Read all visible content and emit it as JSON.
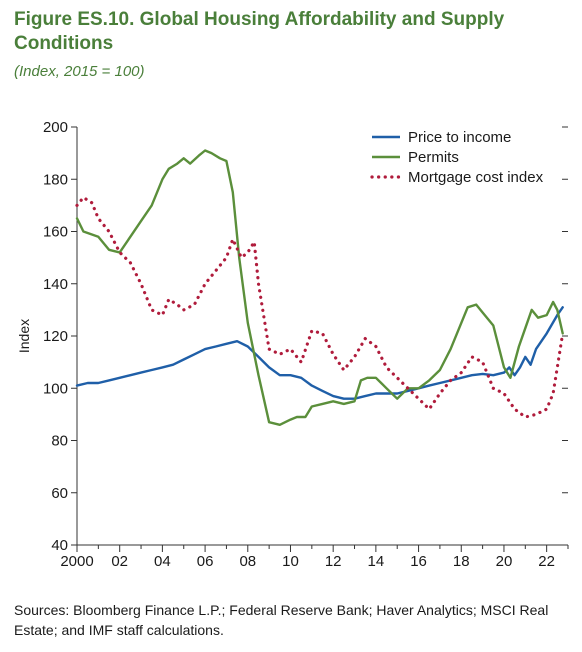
{
  "header": {
    "title": "Figure ES.10. Global Housing Affordability and Supply Conditions",
    "subtitle": "(Index, 2015 = 100)"
  },
  "footer": {
    "source": "Sources: Bloomberg Finance L.P.; Federal Reserve Bank; Haver Analytics; MSCI Real Estate; and IMF staff calculations."
  },
  "chart_data": {
    "type": "line",
    "ylabel": "Index",
    "xlabel": "",
    "xlim": [
      2000,
      2023
    ],
    "ylim": [
      40,
      200
    ],
    "yticks": [
      40,
      60,
      80,
      100,
      120,
      140,
      160,
      180,
      200
    ],
    "xtick_values": [
      2000,
      2002,
      2004,
      2006,
      2008,
      2010,
      2012,
      2014,
      2016,
      2018,
      2020,
      2022
    ],
    "xtick_labels": [
      "2000",
      "02",
      "04",
      "06",
      "08",
      "10",
      "12",
      "14",
      "16",
      "18",
      "20",
      "22"
    ],
    "grid": false,
    "legend_position": "top-right",
    "series": [
      {
        "name": "Price to income",
        "color": "#1f5fa8",
        "style": "solid",
        "x": [
          2000,
          2000.5,
          2001,
          2001.5,
          2002,
          2002.5,
          2003,
          2003.5,
          2004,
          2004.5,
          2005,
          2005.5,
          2006,
          2006.5,
          2007,
          2007.5,
          2008,
          2008.5,
          2009,
          2009.5,
          2010,
          2010.5,
          2011,
          2011.5,
          2012,
          2012.5,
          2013,
          2013.5,
          2014,
          2014.5,
          2015,
          2015.5,
          2016,
          2016.5,
          2017,
          2017.5,
          2018,
          2018.5,
          2019,
          2019.5,
          2020,
          2020.25,
          2020.5,
          2020.75,
          2021,
          2021.25,
          2021.5,
          2022,
          2022.5,
          2022.75
        ],
        "values": [
          101,
          102,
          102,
          103,
          104,
          105,
          106,
          107,
          108,
          109,
          111,
          113,
          115,
          116,
          117,
          118,
          116,
          112,
          108,
          105,
          105,
          104,
          101,
          99,
          97,
          96,
          96,
          97,
          98,
          98,
          98,
          99,
          100,
          101,
          102,
          103,
          104,
          105,
          105.5,
          105,
          106,
          108,
          105,
          108,
          112,
          109,
          115,
          121,
          128,
          131
        ]
      },
      {
        "name": "Permits",
        "color": "#5b8f3b",
        "style": "solid",
        "x": [
          2000,
          2000.3,
          2001,
          2001.5,
          2002,
          2002.5,
          2003,
          2003.5,
          2004,
          2004.3,
          2004.7,
          2005,
          2005.3,
          2005.7,
          2006,
          2006.3,
          2006.7,
          2007,
          2007.3,
          2007.6,
          2008,
          2008.5,
          2009,
          2009.5,
          2010,
          2010.3,
          2010.7,
          2011,
          2011.5,
          2012,
          2012.5,
          2013,
          2013.3,
          2013.6,
          2014,
          2014.5,
          2015,
          2015.5,
          2016,
          2016.5,
          2017,
          2017.5,
          2018,
          2018.3,
          2018.7,
          2019,
          2019.5,
          2020,
          2020.3,
          2020.7,
          2021,
          2021.3,
          2021.6,
          2022,
          2022.3,
          2022.5,
          2022.75
        ],
        "values": [
          165,
          160,
          158,
          153,
          152,
          158,
          164,
          170,
          180,
          184,
          186,
          188,
          186,
          189,
          191,
          190,
          188,
          187,
          175,
          150,
          125,
          105,
          87,
          86,
          88,
          89,
          89,
          93,
          94,
          95,
          94,
          95,
          103,
          104,
          104,
          100,
          96,
          100,
          100,
          103,
          107,
          115,
          125,
          131,
          132,
          129,
          124,
          108,
          104,
          116,
          123,
          130,
          127,
          128,
          133,
          130,
          121
        ]
      },
      {
        "name": "Mortgage cost index",
        "color": "#b01c3c",
        "style": "dotted",
        "x": [
          2000,
          2000.3,
          2000.7,
          2001,
          2001.5,
          2002,
          2002.5,
          2003,
          2003.5,
          2004,
          2004.3,
          2004.7,
          2005,
          2005.5,
          2006,
          2006.5,
          2007,
          2007.3,
          2007.7,
          2008,
          2008.3,
          2008.5,
          2009,
          2009.5,
          2010,
          2010.5,
          2011,
          2011.5,
          2012,
          2012.5,
          2013,
          2013.5,
          2014,
          2014.5,
          2015,
          2015.5,
          2016,
          2016.5,
          2017,
          2017.5,
          2018,
          2018.5,
          2019,
          2019.5,
          2020,
          2020.5,
          2021,
          2021.5,
          2022,
          2022.3,
          2022.5,
          2022.75
        ],
        "values": [
          170,
          173,
          171,
          165,
          160,
          152,
          148,
          140,
          130,
          128,
          134,
          132,
          130,
          132,
          140,
          145,
          150,
          157,
          150,
          152,
          156,
          140,
          115,
          113,
          115,
          110,
          122,
          121,
          113,
          107,
          112,
          119,
          116,
          108,
          104,
          100,
          96,
          92,
          98,
          103,
          106,
          112,
          110,
          100,
          98,
          92,
          89,
          90,
          92,
          98,
          108,
          121
        ]
      }
    ]
  }
}
